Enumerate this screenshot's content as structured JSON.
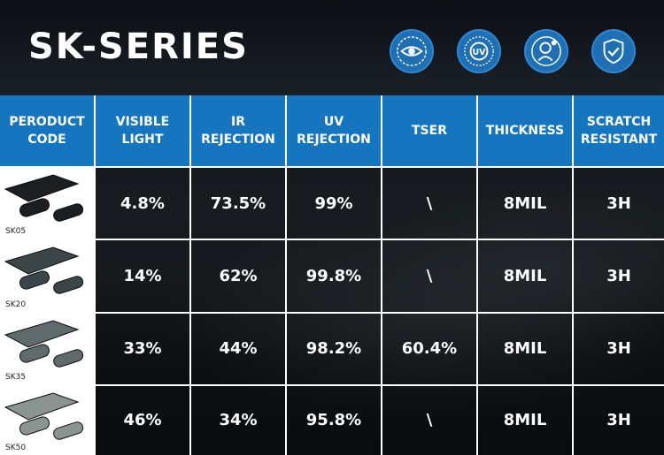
{
  "title": "SK-SERIES",
  "feature_icons": [
    "eye-icon",
    "uv-icon",
    "person-heat-icon",
    "shield-check-icon"
  ],
  "columns": [
    "PERODUCT\nCODE",
    "VISIBLE\nLIGHT",
    "IR\nREJECTION",
    "UV\nREJECTION",
    "TSER",
    "THICKNESS",
    "SCRATCH\nRESISTANT"
  ],
  "rows": [
    {
      "code": "SK05",
      "film_shade": "#1b1f22",
      "visible_light": "4.8%",
      "ir_rejection": "73.5%",
      "uv_rejection": "99%",
      "tser": "\\",
      "thickness": "8MIL",
      "scratch": "3H"
    },
    {
      "code": "SK20",
      "film_shade": "#3c4649",
      "visible_light": "14%",
      "ir_rejection": "62%",
      "uv_rejection": "99.8%",
      "tser": "\\",
      "thickness": "8MIL",
      "scratch": "3H"
    },
    {
      "code": "SK35",
      "film_shade": "#5f6a6d",
      "visible_light": "33%",
      "ir_rejection": "44%",
      "uv_rejection": "98.2%",
      "tser": "60.4%",
      "thickness": "8MIL",
      "scratch": "3H"
    },
    {
      "code": "SK50",
      "film_shade": "#8a9490",
      "visible_light": "46%",
      "ir_rejection": "34%",
      "uv_rejection": "95.8%",
      "tser": "\\",
      "thickness": "8MIL",
      "scratch": "3H"
    }
  ],
  "colors": {
    "header_blue": "#1576bf",
    "icon_blue": "#1f6fb5"
  }
}
